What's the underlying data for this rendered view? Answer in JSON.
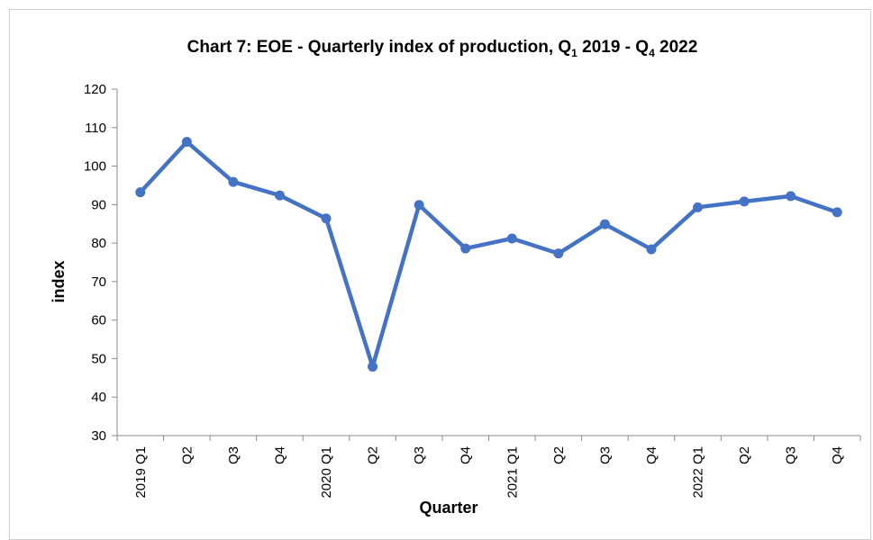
{
  "chart_data": {
    "type": "line",
    "title": {
      "prefix": "Chart 7: EOE - Quarterly index of production, Q",
      "sub1": "1",
      "middle": " 2019 - Q",
      "sub2": "4",
      "suffix": " 2022"
    },
    "xlabel": "Quarter",
    "ylabel": "index",
    "ylim": [
      30,
      120
    ],
    "yticks": [
      30,
      40,
      50,
      60,
      70,
      80,
      90,
      100,
      110,
      120
    ],
    "categories": [
      "2019 Q1",
      "Q2",
      "Q3",
      "Q4",
      "2020 Q1",
      "Q2",
      "Q3",
      "Q4",
      "2021 Q1",
      "Q2",
      "Q3",
      "Q4",
      "2022 Q1",
      "Q2",
      "Q3",
      "Q4"
    ],
    "series": [
      {
        "values": [
          93.2,
          106.3,
          95.9,
          92.4,
          86.4,
          47.9,
          89.9,
          78.6,
          81.2,
          77.3,
          84.9,
          78.4,
          89.3,
          90.8,
          92.2,
          88.0
        ]
      }
    ],
    "grid": false,
    "legend": "none",
    "colors": {
      "line": "#4472C4",
      "axis": "#8c8c8c"
    }
  }
}
